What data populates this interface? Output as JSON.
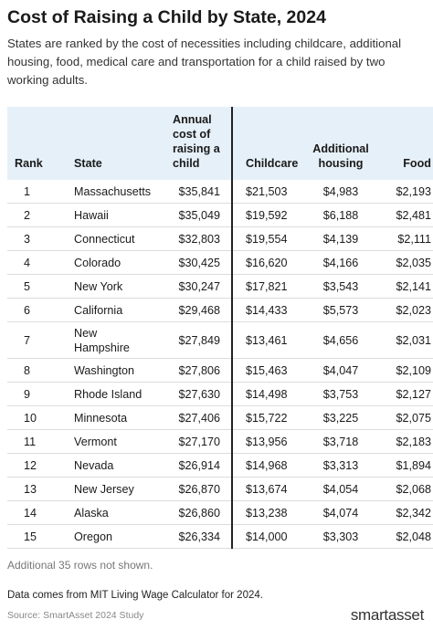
{
  "header": {
    "title": "Cost of Raising a Child by State, 2024",
    "subtitle": "States are ranked by the cost of necessities including childcare, additional housing, food, medical care and transportation for a child raised by two working adults."
  },
  "table": {
    "columns": [
      "Rank",
      "State",
      "Annual cost of raising a child",
      "Childcare",
      "Additional housing",
      "Food"
    ],
    "rows": [
      [
        "1",
        "Massachusetts",
        "$35,841",
        "$21,503",
        "$4,983",
        "$2,193"
      ],
      [
        "2",
        "Hawaii",
        "$35,049",
        "$19,592",
        "$6,188",
        "$2,481"
      ],
      [
        "3",
        "Connecticut",
        "$32,803",
        "$19,554",
        "$4,139",
        "$2,111"
      ],
      [
        "4",
        "Colorado",
        "$30,425",
        "$16,620",
        "$4,166",
        "$2,035"
      ],
      [
        "5",
        "New York",
        "$30,247",
        "$17,821",
        "$3,543",
        "$2,141"
      ],
      [
        "6",
        "California",
        "$29,468",
        "$14,433",
        "$5,573",
        "$2,023"
      ],
      [
        "7",
        "New Hampshire",
        "$27,849",
        "$13,461",
        "$4,656",
        "$2,031"
      ],
      [
        "8",
        "Washington",
        "$27,806",
        "$15,463",
        "$4,047",
        "$2,109"
      ],
      [
        "9",
        "Rhode Island",
        "$27,630",
        "$14,498",
        "$3,753",
        "$2,127"
      ],
      [
        "10",
        "Minnesota",
        "$27,406",
        "$15,722",
        "$3,225",
        "$2,075"
      ],
      [
        "11",
        "Vermont",
        "$27,170",
        "$13,956",
        "$3,718",
        "$2,183"
      ],
      [
        "12",
        "Nevada",
        "$26,914",
        "$14,968",
        "$3,313",
        "$1,894"
      ],
      [
        "13",
        "New Jersey",
        "$26,870",
        "$13,674",
        "$4,054",
        "$2,068"
      ],
      [
        "14",
        "Alaska",
        "$26,860",
        "$13,238",
        "$4,074",
        "$2,342"
      ],
      [
        "15",
        "Oregon",
        "$26,334",
        "$14,000",
        "$3,303",
        "$2,048"
      ]
    ]
  },
  "footer": {
    "footnote": "Additional 35 rows not shown.",
    "note": "Data comes from MIT Living Wage Calculator for 2024.",
    "source": "Source: SmartAsset 2024 Study",
    "logo": "smartasset"
  }
}
